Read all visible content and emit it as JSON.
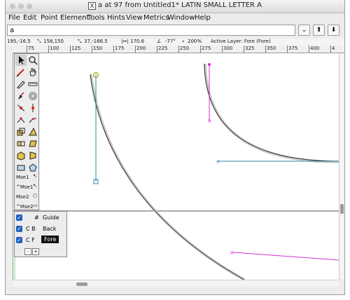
{
  "window": {
    "title": "a at 97 from Untitled1* LATIN SMALL LETTER A"
  },
  "menu": {
    "items": [
      "File",
      "Edit",
      "Point",
      "Element",
      "Tools",
      "Hints",
      "View",
      "Metrics",
      "Window",
      "Help"
    ]
  },
  "search": {
    "value": "a",
    "buttons": [
      "⌄",
      "⬆",
      "⬇"
    ]
  },
  "info": {
    "cursor": "195,-16.5",
    "selection_origin": "158,150",
    "selection_point": "37,-166.5",
    "distance": "170.6",
    "angle": "-77°",
    "zoom": "200%",
    "active_layer": "Active Layer: Fore (Fore)"
  },
  "ruler": {
    "h_ticks": [
      "75",
      "100",
      "125",
      "150",
      "175",
      "200",
      "225",
      "250",
      "275",
      "300",
      "325",
      "350",
      "375",
      "400",
      "4"
    ]
  },
  "tools": {
    "mse_labels": [
      "Mse1",
      "^Mse1",
      "Mse2",
      "^Mse2"
    ]
  },
  "layers": {
    "rows": [
      {
        "code": "#",
        "name": "Guide"
      },
      {
        "code": "C  B",
        "name": "Back"
      },
      {
        "code": "C  F",
        "name": "Fore"
      }
    ],
    "add": "+",
    "remove": "-"
  },
  "colors": {
    "guide_line": "#555555",
    "outline": "#333333",
    "control_cyan": "#2a8aa0",
    "control_magenta": "#d030d0",
    "point_yellow": "#b8a800"
  }
}
